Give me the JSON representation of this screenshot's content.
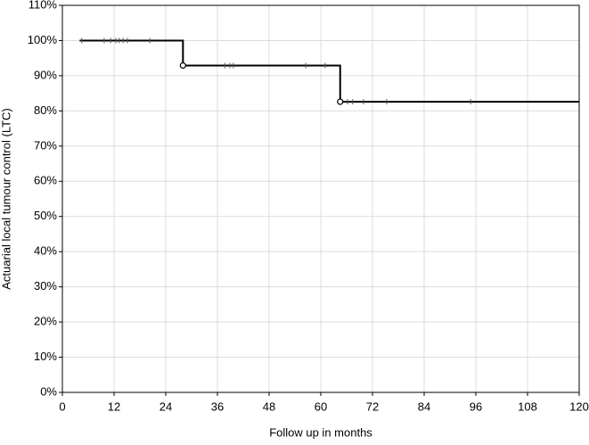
{
  "chart_data": {
    "type": "survival",
    "xlabel": "Follow up in months",
    "ylabel": "Actuarial local tumour control (LTC)",
    "xlim": [
      0,
      120
    ],
    "xticks": [
      0,
      12,
      24,
      36,
      48,
      60,
      72,
      84,
      96,
      108,
      120
    ],
    "ylim": [
      0,
      110
    ],
    "yticks": [
      {
        "value": 0,
        "label": "0%"
      },
      {
        "value": 10,
        "label": "10%"
      },
      {
        "value": 20,
        "label": "20%"
      },
      {
        "value": 30,
        "label": "30%"
      },
      {
        "value": 40,
        "label": "40%"
      },
      {
        "value": 50,
        "label": "50%"
      },
      {
        "value": 60,
        "label": "60%"
      },
      {
        "value": 70,
        "label": "70%"
      },
      {
        "value": 80,
        "label": "80%"
      },
      {
        "value": 90,
        "label": "90%"
      },
      {
        "value": 100,
        "label": "100%"
      },
      {
        "value": 110,
        "label": "110%"
      }
    ],
    "grid": true,
    "color": "#000000",
    "curve": {
      "x": [
        4,
        28,
        28,
        64.5,
        64.5,
        120
      ],
      "values": [
        100,
        100,
        92.9,
        92.9,
        82.6,
        82.6
      ]
    },
    "censored": {
      "x": [
        4.5,
        9.7,
        11.2,
        12.4,
        13.2,
        14.1,
        15.1,
        20.3,
        37.7,
        38.9,
        39.7,
        56.5,
        61,
        66.2,
        67.4,
        69.9,
        75.3,
        94.8
      ],
      "values": [
        100,
        100,
        100,
        100,
        100,
        100,
        100,
        100,
        92.9,
        92.9,
        92.9,
        92.9,
        92.9,
        82.6,
        82.6,
        82.6,
        82.6,
        82.6
      ]
    },
    "events": {
      "x": [
        28,
        64.5
      ],
      "values": [
        92.9,
        82.6
      ]
    }
  }
}
